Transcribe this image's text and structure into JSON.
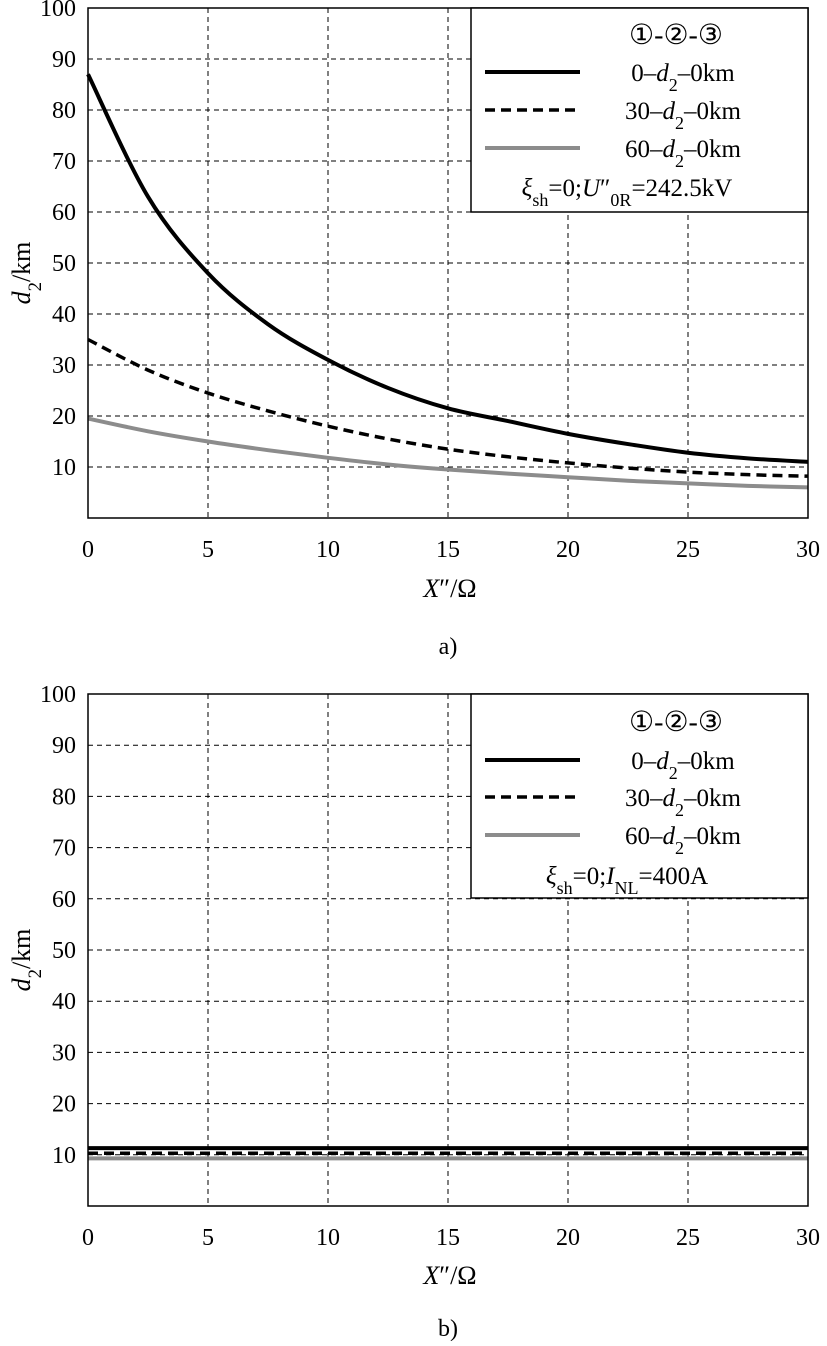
{
  "chart_data": [
    {
      "type": "line",
      "panel_label": "a)",
      "xlabel": "X″/Ω",
      "ylabel": "d₂/km",
      "xlim": [
        0,
        30
      ],
      "ylim": [
        0,
        100
      ],
      "xticks": [
        0,
        5,
        10,
        15,
        20,
        25,
        30
      ],
      "yticks": [
        10,
        20,
        30,
        40,
        50,
        60,
        70,
        80,
        90,
        100
      ],
      "grid": true,
      "legend_position": "top-right",
      "legend_title": "①-②-③",
      "annotation": "ξsh=0;U″0R=242.5kV",
      "x": [
        0,
        2.5,
        5,
        7.5,
        10,
        12.5,
        15,
        17.5,
        20,
        22.5,
        25,
        27.5,
        30
      ],
      "series": [
        {
          "name": "0–d₂–0km",
          "style": "solid",
          "color": "#000000",
          "values": [
            87,
            63,
            48,
            38,
            31,
            25.5,
            21.5,
            19,
            16.5,
            14.5,
            12.8,
            11.7,
            11
          ]
        },
        {
          "name": "30–d₂–0km",
          "style": "dashed",
          "color": "#000000",
          "values": [
            35,
            29,
            24.5,
            21,
            18,
            15.5,
            13.5,
            12,
            10.8,
            9.8,
            9,
            8.5,
            8.2
          ]
        },
        {
          "name": "60–d₂–0km",
          "style": "solid",
          "color": "#8c8c8c",
          "values": [
            19.5,
            17,
            15,
            13.3,
            11.8,
            10.5,
            9.5,
            8.7,
            8,
            7.3,
            6.8,
            6.3,
            6
          ]
        }
      ]
    },
    {
      "type": "line",
      "panel_label": "b)",
      "xlabel": "X″/Ω",
      "ylabel": "d₂/km",
      "xlim": [
        0,
        30
      ],
      "ylim": [
        0,
        100
      ],
      "xticks": [
        0,
        5,
        10,
        15,
        20,
        25,
        30
      ],
      "yticks": [
        10,
        20,
        30,
        40,
        50,
        60,
        70,
        80,
        90,
        100
      ],
      "grid": true,
      "legend_position": "top-right",
      "legend_title": "①-②-③",
      "annotation": "ξsh=0;INL=400A",
      "x": [
        0,
        30
      ],
      "series": [
        {
          "name": "0–d₂–0km",
          "style": "solid",
          "color": "#000000",
          "values": [
            11.3,
            11.3
          ]
        },
        {
          "name": "30–d₂–0km",
          "style": "dashed",
          "color": "#000000",
          "values": [
            10.3,
            10.3
          ]
        },
        {
          "name": "60–d₂–0km",
          "style": "solid",
          "color": "#8c8c8c",
          "values": [
            9.3,
            9.3
          ]
        }
      ]
    }
  ]
}
